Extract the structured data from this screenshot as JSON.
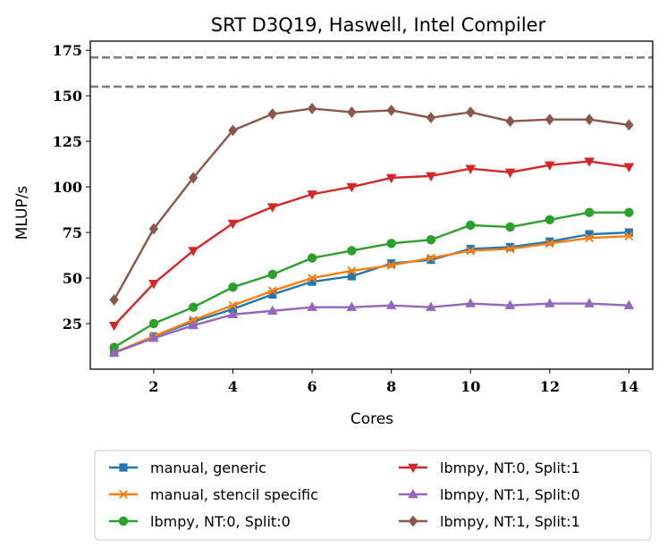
{
  "chart_data": {
    "type": "line",
    "title": "SRT D3Q19, Haswell, Intel Compiler",
    "xlabel": "Cores",
    "ylabel": "MLUP/s",
    "x": [
      1,
      2,
      3,
      4,
      5,
      6,
      7,
      8,
      9,
      10,
      11,
      12,
      13,
      14
    ],
    "xlim": [
      0.4,
      14.6
    ],
    "ylim": [
      0,
      180
    ],
    "xticks": [
      "2",
      "4",
      "6",
      "8",
      "10",
      "12",
      "14"
    ],
    "xtick_values": [
      2,
      4,
      6,
      8,
      10,
      12,
      14
    ],
    "yticks": [
      "25",
      "50",
      "75",
      "100",
      "125",
      "150",
      "175"
    ],
    "ytick_values": [
      25,
      50,
      75,
      100,
      125,
      150,
      175
    ],
    "grid": false,
    "legend_position": "below the plot, two columns",
    "reference_lines": [
      {
        "y": 171,
        "color": "#808080",
        "style": "dashed"
      },
      {
        "y": 155,
        "color": "#808080",
        "style": "dashed"
      }
    ],
    "series": [
      {
        "name": "manual, generic",
        "color": "#1f77b4",
        "marker": "square",
        "values": [
          9,
          18,
          26,
          33,
          41,
          48,
          51,
          58,
          60,
          66,
          67,
          70,
          74,
          75
        ]
      },
      {
        "name": "manual, stencil specific",
        "color": "#ff7f0e",
        "marker": "x",
        "values": [
          9,
          18,
          27,
          35,
          43,
          50,
          54,
          57,
          61,
          65,
          66,
          69,
          72,
          73
        ]
      },
      {
        "name": "lbmpy, NT:0, Split:0",
        "color": "#2ca02c",
        "marker": "circle",
        "values": [
          12,
          25,
          34,
          45,
          52,
          61,
          65,
          69,
          71,
          79,
          78,
          82,
          86,
          86
        ]
      },
      {
        "name": "lbmpy, NT:0, Split:1",
        "color": "#d62728",
        "marker": "triangle-down",
        "values": [
          24,
          47,
          65,
          80,
          89,
          96,
          100,
          105,
          106,
          110,
          108,
          112,
          114,
          111
        ]
      },
      {
        "name": "lbmpy, NT:1, Split:0",
        "color": "#9467bd",
        "marker": "triangle-up",
        "values": [
          9,
          17,
          24,
          30,
          32,
          34,
          34,
          35,
          34,
          36,
          35,
          36,
          36,
          35
        ]
      },
      {
        "name": "lbmpy, NT:1, Split:1",
        "color": "#8c564b",
        "marker": "diamond",
        "values": [
          38,
          77,
          105,
          131,
          140,
          143,
          141,
          142,
          138,
          141,
          136,
          137,
          137,
          134
        ]
      }
    ]
  }
}
